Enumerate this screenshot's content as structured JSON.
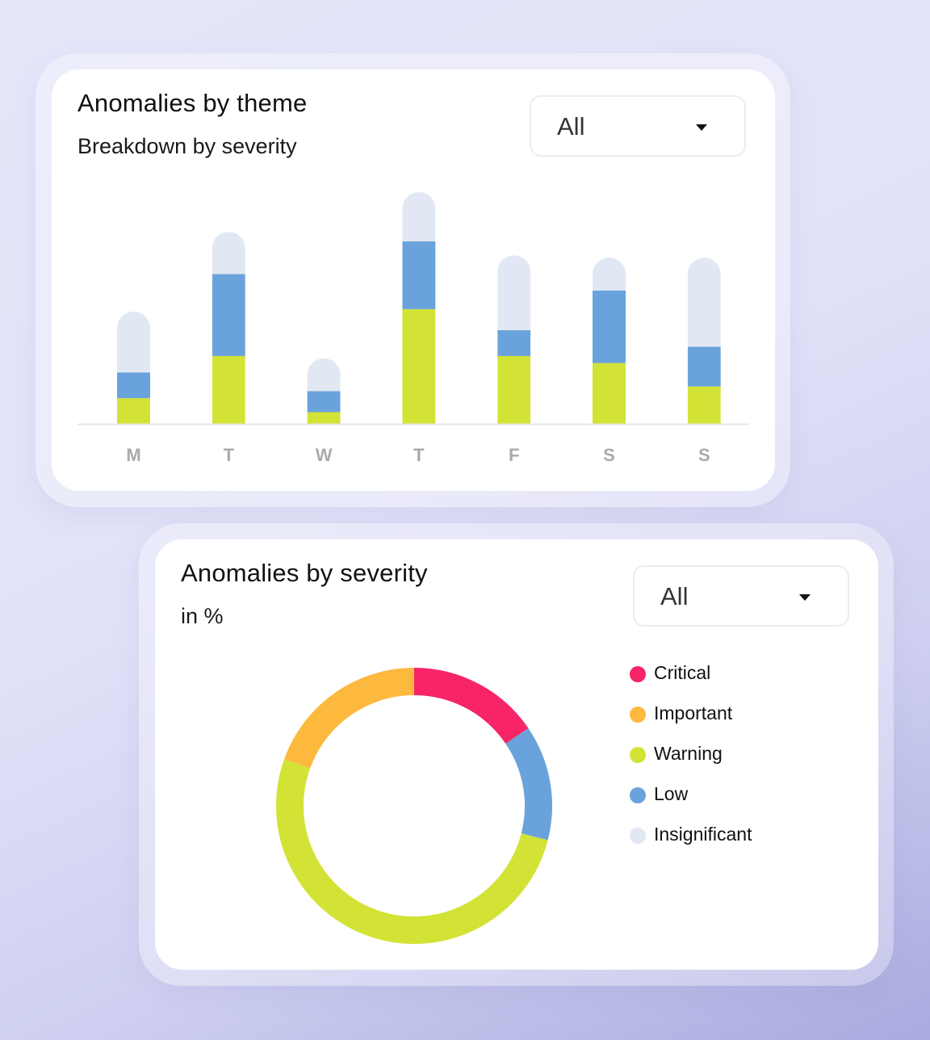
{
  "colors": {
    "Critical": "#f72467",
    "Important": "#fdb83e",
    "Warning": "#d2e336",
    "Low": "#6aa3db",
    "Insignificant": "#e1e8f3",
    "axis": "#e6e6ea",
    "tick": "#aaaaaa"
  },
  "theme_card": {
    "title": "Anomalies by theme",
    "subtitle": "Breakdown by severity",
    "filter": {
      "value": "All",
      "icon": "caret-down-icon"
    }
  },
  "severity_card": {
    "title": "Anomalies by severity",
    "subtitle": "in %",
    "filter": {
      "value": "All",
      "icon": "caret-down-icon"
    }
  },
  "chart_data": [
    {
      "type": "bar",
      "stacked": true,
      "title": "Anomalies by theme",
      "subtitle": "Breakdown by severity",
      "categories": [
        "M",
        "T",
        "W",
        "T",
        "F",
        "S",
        "S"
      ],
      "ylim": [
        0,
        100
      ],
      "grid": false,
      "series": [
        {
          "key": "Warning",
          "values": [
            11,
            29,
            5,
            49,
            29,
            26,
            16
          ]
        },
        {
          "key": "Low",
          "values": [
            11,
            35,
            9,
            29,
            11,
            31,
            17
          ]
        },
        {
          "key": "Insignificant",
          "values": [
            26,
            18,
            14,
            21,
            32,
            14,
            38
          ]
        }
      ]
    },
    {
      "type": "pie",
      "donut": true,
      "title": "Anomalies by severity",
      "subtitle": "in %",
      "slices": [
        {
          "label": "Critical",
          "value": 15.5
        },
        {
          "label": "Low",
          "value": 13.5
        },
        {
          "label": "Warning",
          "value": 51.5
        },
        {
          "label": "Important",
          "value": 19.5
        },
        {
          "label": "Insignificant",
          "value": 0
        }
      ],
      "legend": [
        "Critical",
        "Important",
        "Warning",
        "Low",
        "Insignificant"
      ],
      "legend_position": "right"
    }
  ]
}
